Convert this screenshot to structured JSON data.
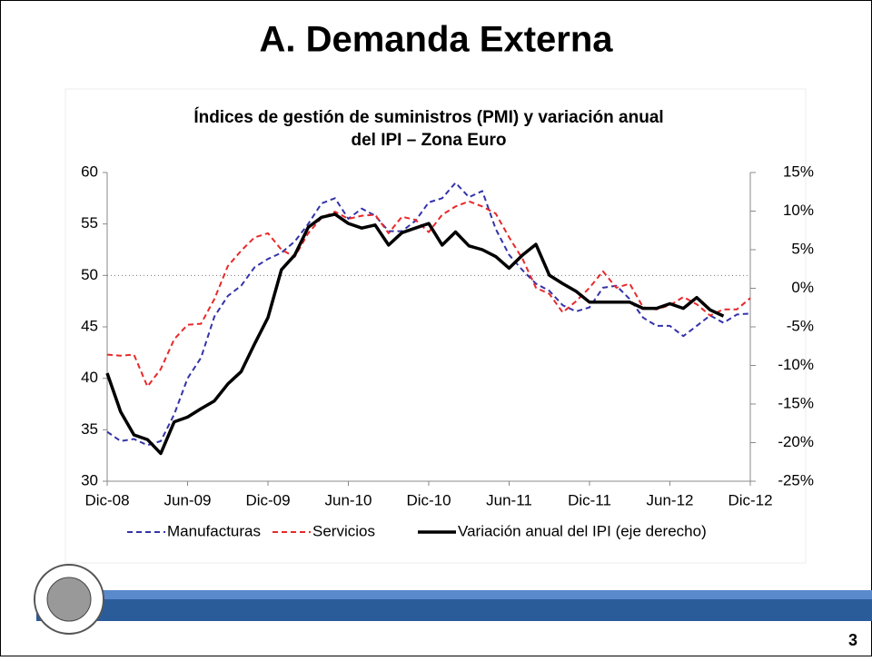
{
  "slide": {
    "title": "A. Demanda Externa",
    "page_number": "3"
  },
  "chart_data": {
    "type": "line",
    "title": [
      "Índices de gestión de suministros (PMI) y variación anual",
      "del IPI – Zona Euro"
    ],
    "categories": [
      "Dic-08",
      null,
      null,
      null,
      null,
      null,
      "Jun-09",
      null,
      null,
      null,
      null,
      null,
      "Dic-09",
      null,
      null,
      null,
      null,
      null,
      "Jun-10",
      null,
      null,
      null,
      null,
      null,
      "Dic-10",
      null,
      null,
      null,
      null,
      null,
      "Jun-11",
      null,
      null,
      null,
      null,
      null,
      "Dic-11",
      null,
      null,
      null,
      null,
      null,
      "Jun-12",
      null,
      null,
      null,
      null,
      null,
      "Dic-12"
    ],
    "ylim": [
      30,
      60
    ],
    "yticks": [
      30,
      35,
      40,
      45,
      50,
      55,
      60
    ],
    "y2lim": [
      -25,
      15
    ],
    "y2ticks": [
      {
        "value": -25,
        "label": "-25%"
      },
      {
        "value": -20,
        "label": "-20%"
      },
      {
        "value": -15,
        "label": "-15%"
      },
      {
        "value": -10,
        "label": "-10%"
      },
      {
        "value": -5,
        "label": "-5%"
      },
      {
        "value": 0,
        "label": "0%"
      },
      {
        "value": 5,
        "label": "5%"
      },
      {
        "value": 10,
        "label": "10%"
      },
      {
        "value": 15,
        "label": "15%"
      }
    ],
    "reference_line": 50,
    "legend": "bottom",
    "series": [
      {
        "name": "Manufacturas",
        "color": "#3333aa",
        "dashed": true,
        "values": [
          34.8,
          33.9,
          34.1,
          33.5,
          33.9,
          36.5,
          40,
          42,
          46,
          48,
          49,
          50.8,
          51.6,
          52.2,
          53.3,
          55,
          57,
          57.5,
          55.5,
          56.5,
          55.8,
          54.3,
          54.3,
          55.3,
          57.1,
          57.5,
          59,
          57.6,
          58.2,
          54.5,
          52,
          50.5,
          49.2,
          48.5,
          47.1,
          46.5,
          46.9,
          48.8,
          49,
          47.7,
          45.9,
          45.1,
          45.1,
          44.1,
          45.1,
          46.1,
          45.4,
          46.2,
          46.3
        ]
      },
      {
        "name": "Servicios",
        "color": "#e8282a",
        "dashed": true,
        "values": [
          42.3,
          42.2,
          42.3,
          39.2,
          40.9,
          43.8,
          45.2,
          45.3,
          47.7,
          50.9,
          52.4,
          53.7,
          54.1,
          52.5,
          51.8,
          54.1,
          55.6,
          56.2,
          55.5,
          55.8,
          55.9,
          54.1,
          55.7,
          55.4,
          54.2,
          55.9,
          56.7,
          57.2,
          56.7,
          56,
          53.7,
          51.6,
          48.8,
          48.2,
          46.4,
          47.5,
          48.8,
          50.4,
          48.8,
          49.2,
          46.9,
          46.7,
          47.1,
          47.9,
          47.2,
          46.1,
          46.7,
          46.7,
          47.8
        ]
      },
      {
        "name": "Variación anual del IPI (eje derecho)",
        "color": "#000000",
        "dashed": false,
        "axis": "y2",
        "values": [
          -11,
          -16,
          -19,
          -19.6,
          -21.4,
          -17.3,
          -16.7,
          -15.6,
          -14.6,
          -12.4,
          -10.8,
          -7.2,
          -3.8,
          2.4,
          4.3,
          7.9,
          9.2,
          9.6,
          8.4,
          7.8,
          8.2,
          5.6,
          7.2,
          7.8,
          8.4,
          5.6,
          7.3,
          5.5,
          5,
          4.1,
          2.6,
          4.3,
          5.7,
          1.7,
          0.6,
          -0.4,
          -1.8,
          -1.8,
          -1.8,
          -1.8,
          -2.6,
          -2.6,
          -2,
          -2.6,
          -1.2,
          -2.8,
          -3.6,
          null,
          null
        ]
      }
    ]
  }
}
